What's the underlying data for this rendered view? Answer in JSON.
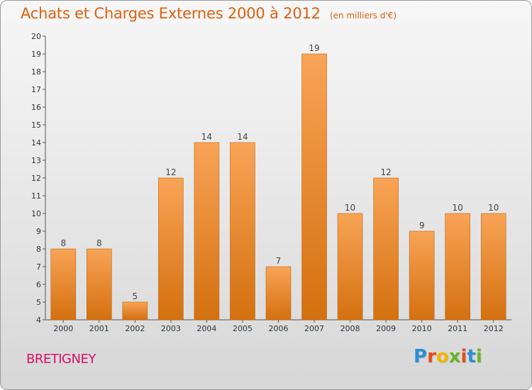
{
  "header": {
    "title": "Achats et Charges Externes 2000 à 2012",
    "unit": "(en milliers d'€)"
  },
  "footer": {
    "commune": "BRETIGNEY",
    "brand": "Proxiti"
  },
  "colors": {
    "title": "#e06010",
    "commune": "#d6106a",
    "bar_light": "#f8a457",
    "bar_dark": "#d4700f",
    "brand_letters": [
      "#2a8fd6",
      "#e84a1a",
      "#f2b600",
      "#6ab42d",
      "#e84a1a",
      "#2a8fd6",
      "#6ab42d"
    ]
  },
  "chart_data": {
    "type": "bar",
    "title": "Achats et Charges Externes 2000 à 2012",
    "subtitle": "(en milliers d'€)",
    "xlabel": "",
    "ylabel": "",
    "categories": [
      "2000",
      "2001",
      "2002",
      "2003",
      "2004",
      "2005",
      "2006",
      "2007",
      "2008",
      "2009",
      "2010",
      "2011",
      "2012"
    ],
    "values": [
      8,
      8,
      5,
      12,
      14,
      14,
      7,
      19,
      10,
      12,
      9,
      10,
      10
    ],
    "ylim": [
      4,
      20
    ],
    "yticks": [
      4,
      5,
      6,
      7,
      8,
      9,
      10,
      11,
      12,
      13,
      14,
      15,
      16,
      17,
      18,
      19,
      20
    ],
    "grid": false,
    "legend": "none",
    "data_labels": true
  }
}
